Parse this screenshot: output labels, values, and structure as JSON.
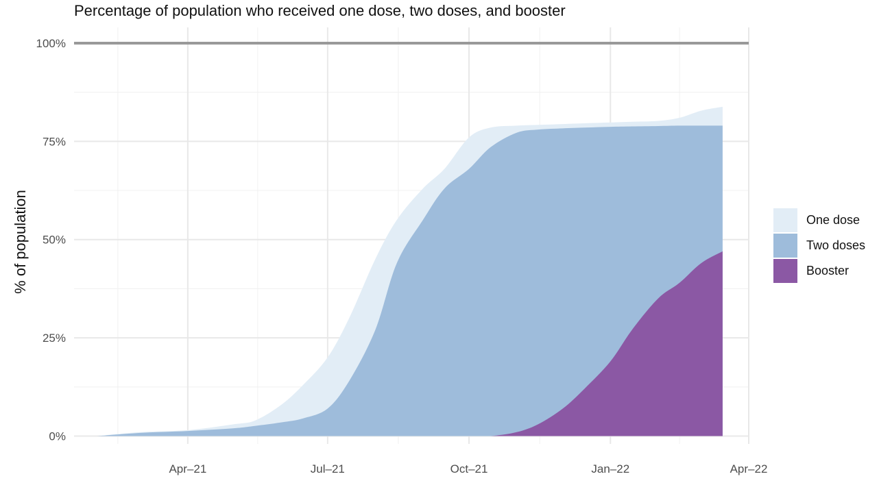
{
  "chart_data": {
    "type": "area",
    "title": "Percentage of population who received one dose, two doses, and booster",
    "ylabel": "% of population",
    "xlabel": "",
    "x_ticks": [
      {
        "date": "2021-04-01",
        "label": "Apr–21"
      },
      {
        "date": "2021-07-01",
        "label": "Jul–21"
      },
      {
        "date": "2021-10-01",
        "label": "Oct–21"
      },
      {
        "date": "2022-01-01",
        "label": "Jan–22"
      },
      {
        "date": "2022-04-01",
        "label": "Apr–22"
      }
    ],
    "y_ticks": [
      {
        "value": 0,
        "label": "0%"
      },
      {
        "value": 25,
        "label": "25%"
      },
      {
        "value": 50,
        "label": "50%"
      },
      {
        "value": 75,
        "label": "75%"
      },
      {
        "value": 100,
        "label": "100%"
      }
    ],
    "xlim": [
      "2021-01-17",
      "2022-04-01"
    ],
    "ylim": [
      -2,
      104
    ],
    "reference_line": 100,
    "grid": true,
    "legend_position": "right",
    "x": [
      "2021-02-01",
      "2021-03-01",
      "2021-04-01",
      "2021-05-01",
      "2021-05-15",
      "2021-06-01",
      "2021-06-15",
      "2021-07-01",
      "2021-07-15",
      "2021-08-01",
      "2021-08-15",
      "2021-09-01",
      "2021-09-15",
      "2021-10-01",
      "2021-10-15",
      "2021-11-01",
      "2021-11-15",
      "2021-12-01",
      "2021-12-15",
      "2022-01-01",
      "2022-01-15",
      "2022-02-01",
      "2022-02-15",
      "2022-03-01",
      "2022-03-15"
    ],
    "series": [
      {
        "name": "One dose",
        "color": "#e2edf6",
        "values": [
          0,
          1,
          1.5,
          3,
          4,
          8,
          13,
          20,
          30,
          45,
          55,
          63,
          68,
          76,
          78.5,
          79,
          79.2,
          79.4,
          79.6,
          79.8,
          80,
          80.2,
          81,
          82.8,
          83.8
        ]
      },
      {
        "name": "Two doses",
        "color": "#9ebcdb",
        "values": [
          0,
          0.8,
          1.3,
          2,
          2.6,
          3.5,
          4.5,
          7,
          14,
          27,
          44,
          55,
          63,
          68,
          73.5,
          77.2,
          78,
          78.3,
          78.5,
          78.7,
          78.8,
          78.9,
          79,
          79,
          79
        ]
      },
      {
        "name": "Booster",
        "color": "#8b58a4",
        "values": [
          0,
          0,
          0,
          0,
          0,
          0,
          0,
          0,
          0,
          0,
          0,
          0,
          0,
          0,
          0,
          1,
          3,
          7,
          12,
          19,
          27,
          35,
          39,
          44,
          47
        ]
      }
    ]
  }
}
